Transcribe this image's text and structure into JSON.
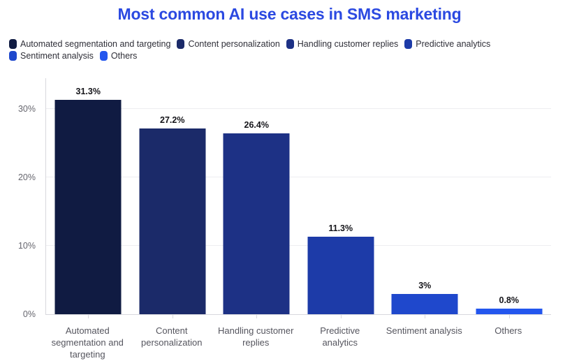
{
  "title": {
    "text": "Most common AI use cases in SMS marketing",
    "color": "#2b49e1"
  },
  "legend": {
    "position": "top-left",
    "items": [
      {
        "label": "Automated segmentation and targeting",
        "color": "#101b42"
      },
      {
        "label": "Content personalization",
        "color": "#1b2a69"
      },
      {
        "label": "Handling customer replies",
        "color": "#1d3185"
      },
      {
        "label": "Predictive analytics",
        "color": "#1d3ba8"
      },
      {
        "label": "Sentiment analysis",
        "color": "#1f48cc"
      },
      {
        "label": "Others",
        "color": "#2356ee"
      }
    ]
  },
  "chart_data": {
    "type": "bar",
    "title": "Most common AI use cases in SMS marketing",
    "categories": [
      "Automated segmentation and targeting",
      "Content personalization",
      "Handling customer replies",
      "Predictive analytics",
      "Sentiment analysis",
      "Others"
    ],
    "values": [
      31.3,
      27.2,
      26.4,
      11.3,
      3,
      0.8
    ],
    "value_labels": [
      "31.3%",
      "27.2%",
      "26.4%",
      "11.3%",
      "3%",
      "0.8%"
    ],
    "bar_colors": [
      "#101b42",
      "#1b2a69",
      "#1d3185",
      "#1d3ba8",
      "#1f48cc",
      "#2356ee"
    ],
    "xlabel": "",
    "ylabel": "",
    "ylim": [
      0,
      34.5
    ],
    "yticks": [
      0,
      10,
      20,
      30
    ],
    "ytick_labels": [
      "0%",
      "10%",
      "20%",
      "30%"
    ],
    "grid": "horizontal",
    "legend_position": "top-left"
  },
  "colors": {
    "background": "#ffffff",
    "axis_line": "#d8d8dd",
    "gridline": "#ededf1",
    "y_tick_label": "#66666e",
    "x_axis_label": "#55555e",
    "value_label": "#15151a",
    "legend_text": "#2f2f38"
  }
}
